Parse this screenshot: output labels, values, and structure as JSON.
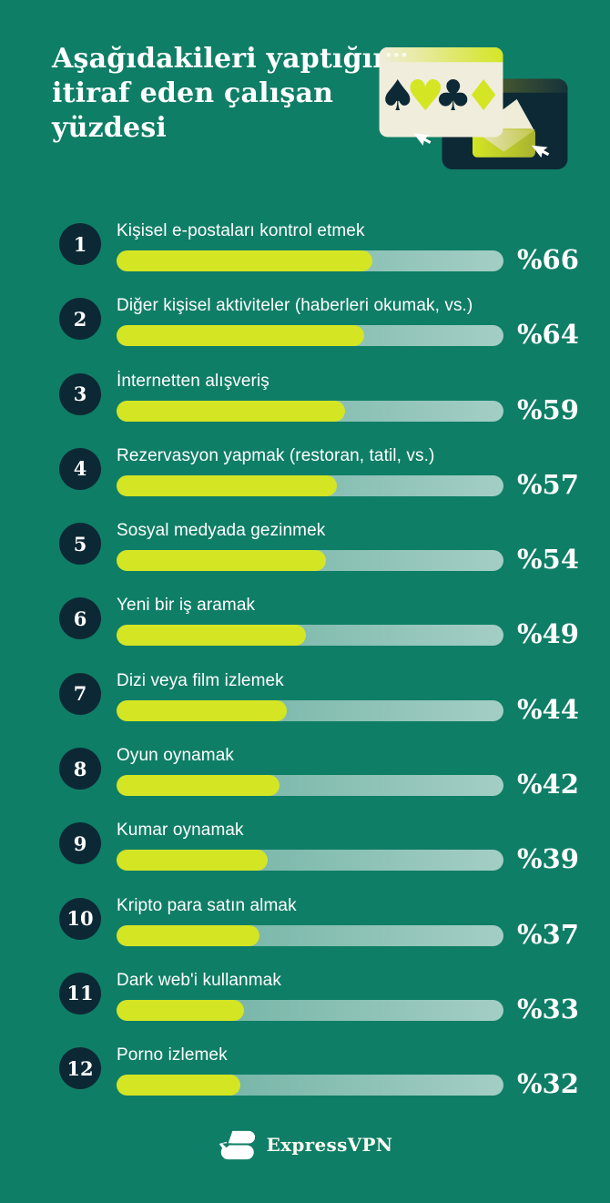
{
  "colors": {
    "background": "#0f7e66",
    "lime": "#d4e524",
    "navy": "#0d2935",
    "cream": "#f0eddc",
    "cream_light": "#fbf9ec",
    "olive": "#6e7627",
    "white": "#ffffff"
  },
  "header": {
    "title": "Aşağıdakileri yaptığını itiraf eden çalışan yüzdesi",
    "title_lines": [
      "Aşağıdakileri yaptığını",
      "itiraf eden çalışan",
      "yüzdesi"
    ]
  },
  "illustration": {
    "suits": [
      {
        "name": "spade",
        "glyph": "♠"
      },
      {
        "name": "heart",
        "glyph": "♥"
      },
      {
        "name": "club",
        "glyph": "♣"
      },
      {
        "name": "diamond",
        "glyph": "♦"
      }
    ]
  },
  "chart_data": {
    "type": "bar",
    "orientation": "horizontal",
    "title": "Aşağıdakileri yaptığını itiraf eden çalışan yüzdesi",
    "categories": [
      "Kişisel e-postaları kontrol etmek",
      "Diğer kişisel aktiviteler (haberleri okumak, vs.)",
      "İnternetten alışveriş",
      "Rezervasyon yapmak (restoran, tatil, vs.)",
      "Sosyal medyada gezinmek",
      "Yeni bir iş aramak",
      "Dizi veya film izlemek",
      "Oyun oynamak",
      "Kumar oynamak",
      "Kripto para satın almak",
      "Dark web'i kullanmak",
      "Porno izlemek"
    ],
    "values": [
      66,
      64,
      59,
      57,
      54,
      49,
      44,
      42,
      39,
      37,
      33,
      32
    ],
    "value_labels": [
      "%66",
      "%64",
      "%59",
      "%57",
      "%54",
      "%49",
      "%44",
      "%42",
      "%39",
      "%37",
      "%33",
      "%32"
    ],
    "xlim": [
      0,
      100
    ],
    "unit": "percent",
    "grid": false,
    "legend": false,
    "bar_color": "#d4e524",
    "track_color": "rgba(255,255,255,0.5)"
  },
  "rows": [
    {
      "rank": "1",
      "label": "Kişisel e-postaları kontrol etmek",
      "value": 66,
      "value_label": "%66"
    },
    {
      "rank": "2",
      "label": "Diğer kişisel aktiviteler (haberleri okumak, vs.)",
      "value": 64,
      "value_label": "%64"
    },
    {
      "rank": "3",
      "label": "İnternetten alışveriş",
      "value": 59,
      "value_label": "%59"
    },
    {
      "rank": "4",
      "label": "Rezervasyon yapmak (restoran, tatil, vs.)",
      "value": 57,
      "value_label": "%57"
    },
    {
      "rank": "5",
      "label": "Sosyal medyada gezinmek",
      "value": 54,
      "value_label": "%54"
    },
    {
      "rank": "6",
      "label": "Yeni bir iş aramak",
      "value": 49,
      "value_label": "%49"
    },
    {
      "rank": "7",
      "label": "Dizi veya film izlemek",
      "value": 44,
      "value_label": "%44"
    },
    {
      "rank": "8",
      "label": "Oyun oynamak",
      "value": 42,
      "value_label": "%42"
    },
    {
      "rank": "9",
      "label": "Kumar oynamak",
      "value": 39,
      "value_label": "%39"
    },
    {
      "rank": "10",
      "label": "Kripto para satın almak",
      "value": 37,
      "value_label": "%37"
    },
    {
      "rank": "11",
      "label": "Dark web'i kullanmak",
      "value": 33,
      "value_label": "%33"
    },
    {
      "rank": "12",
      "label": "Porno izlemek",
      "value": 32,
      "value_label": "%32"
    }
  ],
  "footer": {
    "brand": "ExpressVPN"
  }
}
